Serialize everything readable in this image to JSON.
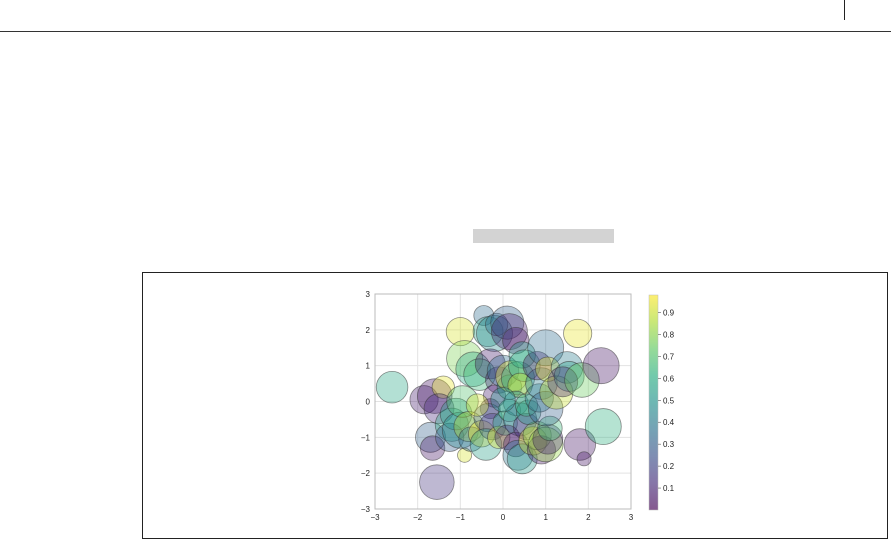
{
  "chart_data": {
    "type": "scatter",
    "title": "",
    "xlabel": "",
    "ylabel": "",
    "xlim": [
      -3,
      3
    ],
    "ylim": [
      -3,
      3
    ],
    "xticks": [
      -3,
      -2,
      -1,
      0,
      1,
      2,
      3
    ],
    "yticks": [
      -3,
      -2,
      -1,
      0,
      1,
      2,
      3
    ],
    "xtick_labels": [
      "−3",
      "−2",
      "−1",
      "0",
      "1",
      "2",
      "3"
    ],
    "ytick_labels": [
      "−3",
      "−2",
      "−1",
      "0",
      "1",
      "2",
      "3"
    ],
    "grid": true,
    "colormap": "viridis",
    "alpha": 0.3,
    "colorbar": {
      "ticks": [
        0.1,
        0.2,
        0.3,
        0.4,
        0.5,
        0.6,
        0.7,
        0.8,
        0.9
      ],
      "labels": [
        "0.1",
        "0.2",
        "0.3",
        "0.4",
        "0.5",
        "0.6",
        "0.7",
        "0.8",
        "0.9"
      ],
      "range": [
        0.0,
        0.98
      ]
    },
    "points": [
      {
        "x": -2.6,
        "y": 0.4,
        "size": 0.1,
        "c": 0.58
      },
      {
        "x": -1.85,
        "y": 0.05,
        "size": 0.08,
        "c": 0.08
      },
      {
        "x": -1.6,
        "y": 0.15,
        "size": 0.12,
        "c": 0.05
      },
      {
        "x": -1.4,
        "y": 0.4,
        "size": 0.05,
        "c": 0.95
      },
      {
        "x": -1.5,
        "y": -0.2,
        "size": 0.09,
        "c": 0.12
      },
      {
        "x": -1.7,
        "y": -1.0,
        "size": 0.09,
        "c": 0.3
      },
      {
        "x": -1.65,
        "y": -1.3,
        "size": 0.06,
        "c": 0.05
      },
      {
        "x": -1.55,
        "y": -2.25,
        "size": 0.12,
        "c": 0.15
      },
      {
        "x": -1.2,
        "y": -0.65,
        "size": 0.11,
        "c": 0.58
      },
      {
        "x": -1.25,
        "y": -1.0,
        "size": 0.08,
        "c": 0.28
      },
      {
        "x": -1.1,
        "y": -0.35,
        "size": 0.1,
        "c": 0.55
      },
      {
        "x": -1.0,
        "y": -0.8,
        "size": 0.13,
        "c": 0.45
      },
      {
        "x": -0.95,
        "y": 0.0,
        "size": 0.1,
        "c": 0.7
      },
      {
        "x": -0.9,
        "y": -1.5,
        "size": 0.02,
        "c": 0.92
      },
      {
        "x": -0.8,
        "y": -0.7,
        "size": 0.09,
        "c": 0.88
      },
      {
        "x": -1.0,
        "y": 1.95,
        "size": 0.08,
        "c": 0.92
      },
      {
        "x": -0.9,
        "y": 1.2,
        "size": 0.13,
        "c": 0.78
      },
      {
        "x": -0.7,
        "y": 0.9,
        "size": 0.12,
        "c": 0.58
      },
      {
        "x": -0.55,
        "y": 0.75,
        "size": 0.1,
        "c": 0.65
      },
      {
        "x": -0.75,
        "y": -1.05,
        "size": 0.06,
        "c": 0.35
      },
      {
        "x": -0.5,
        "y": -0.9,
        "size": 0.07,
        "c": 0.98
      },
      {
        "x": -0.45,
        "y": 2.4,
        "size": 0.04,
        "c": 0.35
      },
      {
        "x": -0.35,
        "y": 1.95,
        "size": 0.09,
        "c": 0.55
      },
      {
        "x": -0.2,
        "y": 1.9,
        "size": 0.13,
        "c": 0.45
      },
      {
        "x": -0.15,
        "y": 2.15,
        "size": 0.05,
        "c": 0.35
      },
      {
        "x": 0.1,
        "y": 2.2,
        "size": 0.11,
        "c": 0.3
      },
      {
        "x": 0.15,
        "y": 1.95,
        "size": 0.13,
        "c": 0.08
      },
      {
        "x": 0.3,
        "y": 1.7,
        "size": 0.07,
        "c": 0.05
      },
      {
        "x": -0.3,
        "y": 1.05,
        "size": 0.09,
        "c": 0.08
      },
      {
        "x": -0.1,
        "y": 0.6,
        "size": 0.07,
        "c": 0.08
      },
      {
        "x": -0.2,
        "y": 0.15,
        "size": 0.05,
        "c": 0.08
      },
      {
        "x": -0.3,
        "y": -0.2,
        "size": 0.04,
        "c": 0.05
      },
      {
        "x": -0.35,
        "y": -0.45,
        "size": 0.08,
        "c": 0.28
      },
      {
        "x": -0.25,
        "y": -0.7,
        "size": 0.07,
        "c": 0.15
      },
      {
        "x": -0.4,
        "y": -1.2,
        "size": 0.1,
        "c": 0.55
      },
      {
        "x": -0.1,
        "y": -1.0,
        "size": 0.05,
        "c": 0.95
      },
      {
        "x": 0.05,
        "y": -0.6,
        "size": 0.06,
        "c": 0.58
      },
      {
        "x": 0.0,
        "y": 0.85,
        "size": 0.1,
        "c": 0.35
      },
      {
        "x": 0.15,
        "y": 0.4,
        "size": 0.06,
        "c": 0.6
      },
      {
        "x": 0.2,
        "y": 0.7,
        "size": 0.1,
        "c": 0.95
      },
      {
        "x": 0.35,
        "y": 0.65,
        "size": 0.11,
        "c": 0.58
      },
      {
        "x": 0.45,
        "y": 1.3,
        "size": 0.07,
        "c": 0.55
      },
      {
        "x": 0.5,
        "y": 1.0,
        "size": 0.1,
        "c": 0.62
      },
      {
        "x": 0.4,
        "y": 0.45,
        "size": 0.06,
        "c": 0.9
      },
      {
        "x": 0.3,
        "y": -0.05,
        "size": 0.06,
        "c": 0.42
      },
      {
        "x": 0.15,
        "y": -0.25,
        "size": 0.05,
        "c": 0.62
      },
      {
        "x": 0.4,
        "y": -0.5,
        "size": 0.11,
        "c": 0.35
      },
      {
        "x": 0.1,
        "y": -1.0,
        "size": 0.06,
        "c": 0.08
      },
      {
        "x": 0.3,
        "y": -1.2,
        "size": 0.06,
        "c": 0.05
      },
      {
        "x": 0.35,
        "y": -1.5,
        "size": 0.09,
        "c": 0.38
      },
      {
        "x": 0.45,
        "y": -1.6,
        "size": 0.09,
        "c": 0.52
      },
      {
        "x": 0.55,
        "y": -0.7,
        "size": 0.07,
        "c": 0.1
      },
      {
        "x": 0.7,
        "y": -1.1,
        "size": 0.08,
        "c": 0.95
      },
      {
        "x": 0.8,
        "y": -0.95,
        "size": 0.08,
        "c": 0.8
      },
      {
        "x": 0.9,
        "y": -1.35,
        "size": 0.08,
        "c": 0.05
      },
      {
        "x": 1.0,
        "y": -1.2,
        "size": 0.12,
        "c": 0.82
      },
      {
        "x": 1.05,
        "y": -1.05,
        "size": 0.09,
        "c": 0.1
      },
      {
        "x": 1.1,
        "y": -0.75,
        "size": 0.06,
        "c": 0.65
      },
      {
        "x": 0.6,
        "y": -0.3,
        "size": 0.06,
        "c": 0.55
      },
      {
        "x": 0.55,
        "y": -0.1,
        "size": 0.05,
        "c": 0.65
      },
      {
        "x": 0.85,
        "y": 0.1,
        "size": 0.08,
        "c": 0.4
      },
      {
        "x": 0.9,
        "y": 0.5,
        "size": 0.1,
        "c": 0.4
      },
      {
        "x": 0.8,
        "y": 1.0,
        "size": 0.08,
        "c": 0.05
      },
      {
        "x": 1.0,
        "y": 1.5,
        "size": 0.13,
        "c": 0.35
      },
      {
        "x": 1.05,
        "y": 0.9,
        "size": 0.06,
        "c": 0.95
      },
      {
        "x": 1.0,
        "y": -0.2,
        "size": 0.12,
        "c": 0.3
      },
      {
        "x": 1.25,
        "y": 0.25,
        "size": 0.11,
        "c": 0.9
      },
      {
        "x": 1.5,
        "y": 0.95,
        "size": 0.1,
        "c": 0.4
      },
      {
        "x": 1.55,
        "y": 0.7,
        "size": 0.09,
        "c": 0.55
      },
      {
        "x": 1.4,
        "y": 0.55,
        "size": 0.09,
        "c": 0.1
      },
      {
        "x": 1.75,
        "y": 1.9,
        "size": 0.08,
        "c": 0.95
      },
      {
        "x": 1.85,
        "y": 0.6,
        "size": 0.12,
        "c": 0.75
      },
      {
        "x": 2.3,
        "y": 1.0,
        "size": 0.13,
        "c": 0.05
      },
      {
        "x": 1.8,
        "y": -1.2,
        "size": 0.1,
        "c": 0.05
      },
      {
        "x": 1.9,
        "y": -1.6,
        "size": 0.02,
        "c": 0.05
      },
      {
        "x": 2.35,
        "y": -0.7,
        "size": 0.13,
        "c": 0.62
      },
      {
        "x": -0.6,
        "y": -0.1,
        "size": 0.05,
        "c": 0.92
      },
      {
        "x": 0.0,
        "y": 0.05,
        "size": 0.06,
        "c": 0.48
      }
    ]
  }
}
